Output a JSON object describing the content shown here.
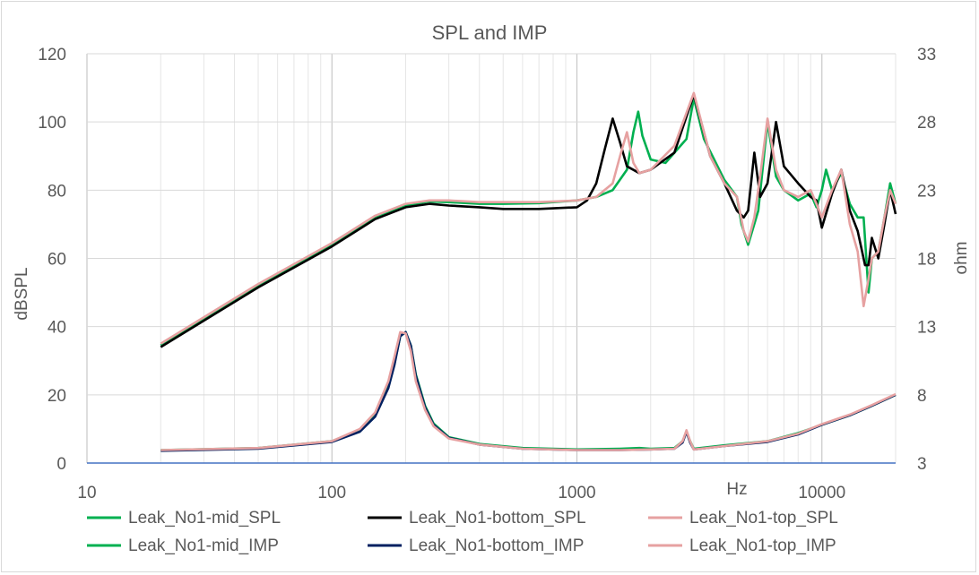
{
  "chart_data": {
    "type": "line",
    "title": "SPL and IMP",
    "xlabel": "Hz",
    "ylabel": "dBSPL",
    "y2label": "ohm",
    "xscale": "log",
    "xlim": [
      10,
      20000
    ],
    "ylim": [
      0,
      120
    ],
    "y2lim": [
      3,
      33
    ],
    "x_ticks": [
      "10",
      "100",
      "1000",
      "10000"
    ],
    "y_ticks": [
      "0",
      "20",
      "40",
      "60",
      "80",
      "100",
      "120"
    ],
    "y2_ticks": [
      "3",
      "8",
      "13",
      "18",
      "23",
      "28",
      "33"
    ],
    "grid": true,
    "legend_position": "bottom",
    "series": [
      {
        "name": "Leak_No1-mid_SPL",
        "axis": "left",
        "color": "#00b050",
        "x": [
          20,
          50,
          100,
          150,
          200,
          250,
          300,
          400,
          500,
          700,
          1000,
          1200,
          1400,
          1600,
          1700,
          1780,
          1850,
          2000,
          2300,
          2800,
          3000,
          3300,
          4000,
          4500,
          4700,
          5000,
          5500,
          6000,
          6500,
          7000,
          8000,
          9000,
          9500,
          10000,
          10400,
          11000,
          12000,
          13000,
          14000,
          14800,
          15500,
          16000,
          17000,
          18000,
          19000,
          20000
        ],
        "y": [
          34.5,
          52,
          64,
          72,
          75.5,
          76.7,
          76.5,
          76,
          76,
          76.2,
          77,
          78,
          80,
          86,
          97,
          103,
          96,
          89,
          88,
          95,
          107,
          95,
          83,
          78,
          70,
          64,
          74,
          100,
          84,
          80,
          77,
          79,
          75,
          80,
          86,
          80,
          85,
          76,
          72,
          72,
          50,
          60,
          62,
          72,
          82,
          76
        ]
      },
      {
        "name": "Leak_No1-bottom_SPL",
        "axis": "left",
        "color": "#000000",
        "x": [
          20,
          50,
          100,
          150,
          200,
          250,
          300,
          400,
          500,
          700,
          1000,
          1100,
          1200,
          1300,
          1400,
          1500,
          1600,
          1800,
          2000,
          2500,
          3000,
          3500,
          4000,
          4500,
          4800,
          5000,
          5300,
          5600,
          6000,
          6500,
          7000,
          8000,
          9000,
          9500,
          10000,
          11000,
          12000,
          13000,
          14000,
          15000,
          15500,
          16000,
          17000,
          18000,
          19000,
          20000
        ],
        "y": [
          34,
          51.5,
          63.5,
          71.5,
          75,
          76,
          75.5,
          75,
          74.5,
          74.5,
          75,
          77,
          82,
          92,
          101,
          94,
          87,
          85,
          86,
          91,
          108,
          90,
          82,
          74,
          72,
          74,
          91,
          78,
          82,
          100,
          87,
          82,
          78,
          77,
          69,
          79,
          86,
          74,
          68,
          58,
          58,
          66,
          60,
          70,
          80,
          73
        ]
      },
      {
        "name": "Leak_No1-top_SPL",
        "axis": "left",
        "color": "#e6a1a1",
        "x": [
          20,
          50,
          100,
          150,
          200,
          250,
          300,
          400,
          500,
          700,
          1000,
          1200,
          1400,
          1500,
          1600,
          1700,
          1800,
          2000,
          2500,
          3000,
          3500,
          4000,
          4500,
          4800,
          5000,
          5300,
          5600,
          6000,
          6500,
          7000,
          8000,
          9000,
          9500,
          10000,
          11000,
          12000,
          13000,
          14000,
          14800,
          15500,
          16000,
          17000,
          18000,
          19000,
          20000
        ],
        "y": [
          35,
          52.5,
          64.5,
          72.5,
          76,
          77,
          77,
          76.5,
          76.5,
          76.5,
          77,
          78,
          82,
          90,
          97,
          88,
          85,
          86,
          93,
          108.5,
          90,
          82,
          78,
          68,
          65,
          72,
          84,
          101,
          86,
          80,
          78,
          80,
          76,
          72,
          80,
          86,
          70,
          62,
          46,
          54,
          60,
          62,
          72,
          80,
          76
        ]
      },
      {
        "name": "Leak_No1-mid_IMP",
        "axis": "right",
        "color": "#00b050",
        "x": [
          20,
          50,
          100,
          130,
          150,
          170,
          180,
          190,
          200,
          210,
          220,
          240,
          260,
          300,
          400,
          600,
          1000,
          1500,
          1800,
          2000,
          2500,
          2700,
          2800,
          2900,
          3000,
          3200,
          4000,
          6000,
          8000,
          10000,
          13000,
          16000,
          20000
        ],
        "y": [
          3.95,
          4.1,
          4.6,
          5.4,
          6.5,
          8.6,
          10.3,
          12.3,
          12.6,
          11.6,
          9.5,
          7.2,
          5.9,
          4.9,
          4.4,
          4.1,
          4.0,
          4.05,
          4.1,
          4.05,
          4.1,
          4.6,
          5.3,
          4.6,
          4.05,
          4.1,
          4.3,
          4.6,
          5.2,
          5.8,
          6.5,
          7.2,
          8.0
        ]
      },
      {
        "name": "Leak_No1-bottom_IMP",
        "axis": "right",
        "color": "#002060",
        "x": [
          20,
          50,
          100,
          130,
          150,
          170,
          180,
          190,
          200,
          210,
          220,
          240,
          260,
          300,
          400,
          600,
          1000,
          1500,
          2000,
          2500,
          2700,
          2800,
          2900,
          3000,
          3200,
          4000,
          6000,
          8000,
          10000,
          13000,
          16000,
          20000
        ],
        "y": [
          3.9,
          4.05,
          4.55,
          5.3,
          6.4,
          8.5,
          10.2,
          12.3,
          12.6,
          11.6,
          9.4,
          7.1,
          5.8,
          4.85,
          4.35,
          4.05,
          3.95,
          3.95,
          4.0,
          4.05,
          4.5,
          5.3,
          4.5,
          4.0,
          4.05,
          4.25,
          4.55,
          5.1,
          5.8,
          6.5,
          7.2,
          8.0
        ]
      },
      {
        "name": "Leak_No1-top_IMP",
        "axis": "right",
        "color": "#e6a1a1",
        "x": [
          20,
          50,
          100,
          130,
          150,
          170,
          180,
          190,
          200,
          210,
          220,
          240,
          260,
          300,
          400,
          600,
          1000,
          1500,
          2000,
          2500,
          2700,
          2800,
          2900,
          3000,
          3200,
          4000,
          6000,
          8000,
          10000,
          13000,
          16000,
          20000
        ],
        "y": [
          3.95,
          4.1,
          4.6,
          5.5,
          6.7,
          9.0,
          10.8,
          12.6,
          12.5,
          11.2,
          9.0,
          6.9,
          5.7,
          4.8,
          4.35,
          4.05,
          3.95,
          3.95,
          4.0,
          4.05,
          4.6,
          5.4,
          4.6,
          4.0,
          4.05,
          4.25,
          4.6,
          5.15,
          5.85,
          6.55,
          7.25,
          8.05
        ]
      }
    ]
  }
}
